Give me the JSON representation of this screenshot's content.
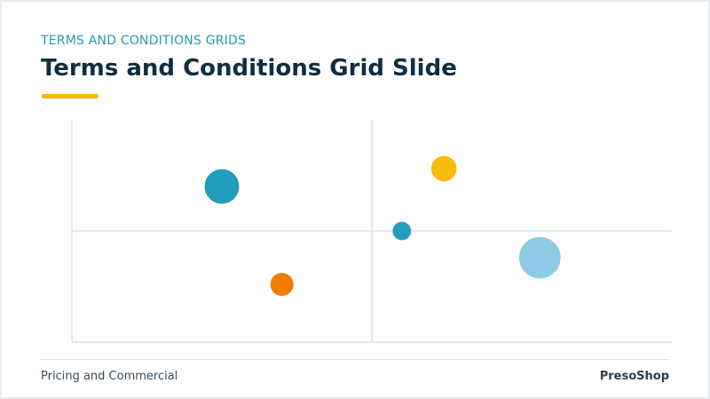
{
  "header": {
    "eyebrow": "TERMS AND CONDITIONS GRIDS",
    "title": "Terms and Conditions Grid Slide"
  },
  "footer": {
    "left": "Pricing and Commercial",
    "right": "PresoShop"
  },
  "colors": {
    "eyebrow": "#2499b8",
    "title": "#0f2e44",
    "accent": "#f5b400",
    "grid": "#d6e3ea"
  },
  "chart_data": {
    "type": "scatter",
    "title": "",
    "xlabel": "",
    "ylabel": "",
    "xlim": [
      0,
      10
    ],
    "ylim": [
      0,
      10
    ],
    "grid": false,
    "quadrant_lines": {
      "x": 5,
      "y": 5
    },
    "points": [
      {
        "x": 2.5,
        "y": 7.0,
        "size": 3.0,
        "color": "#219cbb"
      },
      {
        "x": 3.5,
        "y": 2.6,
        "size": 2.0,
        "color": "#f27c00"
      },
      {
        "x": 6.2,
        "y": 7.8,
        "size": 2.2,
        "color": "#fbbb0c"
      },
      {
        "x": 5.5,
        "y": 5.0,
        "size": 1.6,
        "color": "#239fbd"
      },
      {
        "x": 7.8,
        "y": 3.8,
        "size": 3.6,
        "color": "#8fcbe6"
      }
    ]
  }
}
